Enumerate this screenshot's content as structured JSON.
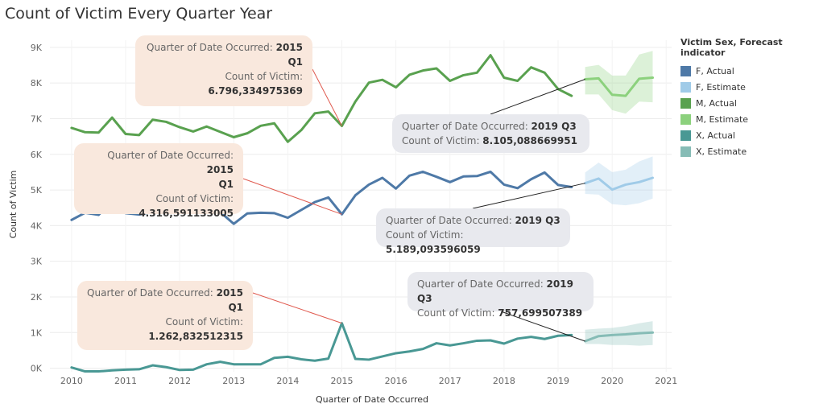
{
  "title": "Count of Victim Every Quarter Year",
  "legend": {
    "title": "Victim Sex, Forecast indicator",
    "items": [
      {
        "label": "F, Actual",
        "color": "#4e79a7"
      },
      {
        "label": "F, Estimate",
        "color": "#a0cbe8"
      },
      {
        "label": "M, Actual",
        "color": "#59a14f"
      },
      {
        "label": "M, Estimate",
        "color": "#8cd17d"
      },
      {
        "label": "X, Actual",
        "color": "#499894"
      },
      {
        "label": "X, Estimate",
        "color": "#86bcb6"
      }
    ]
  },
  "callouts": [
    {
      "key": "Quarter of Date Occurred: ",
      "value": "2015",
      "value2": "Q1",
      "count_key": "Count of Victim:",
      "count_value": "6.796,334975369",
      "style": "peach"
    },
    {
      "key": "Quarter of Date Occurred: ",
      "value": "2019 Q3",
      "count_key": "Count of Victim: ",
      "count_value": "8.105,088669951",
      "style": "gray"
    },
    {
      "key": "Quarter of Date Occurred: ",
      "value": "2015",
      "value2": "Q1",
      "count_key": "Count of Victim:",
      "count_value": "4.316,591133005",
      "style": "peach"
    },
    {
      "key": "Quarter of Date Occurred: ",
      "value": "2019 Q3",
      "count_key": "Count of Victim: ",
      "count_value": "5.189,093596059",
      "style": "gray"
    },
    {
      "key": "Quarter of Date Occurred: ",
      "value": "2015",
      "value2": "Q1",
      "count_key": "Count of Victim:",
      "count_value": "1.262,832512315",
      "style": "peach"
    },
    {
      "key": "Quarter of Date Occurred: ",
      "value": "2019 Q3",
      "count_key": "Count of Victim: ",
      "count_value": "757,699507389",
      "style": "gray"
    }
  ],
  "chart_data": {
    "type": "line",
    "title": "Count of Victim Every Quarter Year",
    "xlabel": "Quarter of Date Occurred",
    "ylabel": "Count of Victim",
    "x_ticks": [
      "2010",
      "2011",
      "2012",
      "2013",
      "2014",
      "2015",
      "2016",
      "2017",
      "2018",
      "2019",
      "2020",
      "2021"
    ],
    "y_ticks": [
      "0K",
      "1K",
      "2K",
      "3K",
      "4K",
      "5K",
      "6K",
      "7K",
      "8K",
      "9K"
    ],
    "xlim": [
      2009.6,
      2021.1
    ],
    "ylim": [
      -100,
      9200
    ],
    "grid": true,
    "legend_position": "right",
    "actual_x": [
      2010.0,
      2010.25,
      2010.5,
      2010.75,
      2011.0,
      2011.25,
      2011.5,
      2011.75,
      2012.0,
      2012.25,
      2012.5,
      2012.75,
      2013.0,
      2013.25,
      2013.5,
      2013.75,
      2014.0,
      2014.25,
      2014.5,
      2014.75,
      2015.0,
      2015.25,
      2015.5,
      2015.75,
      2016.0,
      2016.25,
      2016.5,
      2016.75,
      2017.0,
      2017.25,
      2017.5,
      2017.75,
      2018.0,
      2018.25,
      2018.5,
      2018.75,
      2019.0,
      2019.25
    ],
    "forecast_x": [
      2019.5,
      2019.75,
      2020.0,
      2020.25,
      2020.5,
      2020.75
    ],
    "series": [
      {
        "name": "M, Actual",
        "values": [
          6740,
          6620,
          6610,
          7030,
          6570,
          6540,
          6970,
          6910,
          6760,
          6640,
          6780,
          6630,
          6480,
          6590,
          6800,
          6870,
          6350,
          6680,
          7150,
          7200,
          6796,
          7480,
          8010,
          8090,
          7880,
          8230,
          8350,
          8410,
          8060,
          8220,
          8290,
          8780,
          8150,
          8060,
          8440,
          8290,
          7830,
          7640
        ]
      },
      {
        "name": "F, Actual",
        "values": [
          4160,
          4360,
          4300,
          4690,
          4350,
          4310,
          4390,
          4410,
          4580,
          4430,
          4410,
          4380,
          4050,
          4340,
          4360,
          4350,
          4220,
          4440,
          4660,
          4790,
          4317,
          4850,
          5150,
          5340,
          5040,
          5400,
          5510,
          5370,
          5220,
          5380,
          5390,
          5510,
          5150,
          5050,
          5300,
          5490,
          5140,
          5080
        ]
      },
      {
        "name": "X, Actual",
        "values": [
          20,
          -90,
          -90,
          -60,
          -40,
          -30,
          80,
          30,
          -50,
          -40,
          110,
          180,
          110,
          110,
          110,
          290,
          320,
          250,
          210,
          270,
          1263,
          260,
          240,
          330,
          420,
          470,
          540,
          700,
          640,
          700,
          770,
          780,
          690,
          830,
          880,
          820,
          910,
          930
        ]
      },
      {
        "name": "M, Estimate",
        "values": [
          8105,
          8130,
          7670,
          7640,
          8120,
          8150
        ],
        "lower": [
          7680,
          7680,
          7240,
          7140,
          7480,
          7460
        ],
        "upper": [
          8450,
          8510,
          8210,
          8210,
          8800,
          8900
        ]
      },
      {
        "name": "F, Estimate",
        "values": [
          5189,
          5320,
          5010,
          5150,
          5220,
          5340
        ],
        "lower": [
          4890,
          4870,
          4600,
          4570,
          4630,
          4760
        ],
        "upper": [
          5490,
          5770,
          5500,
          5570,
          5800,
          5940
        ]
      },
      {
        "name": "X, Estimate",
        "values": [
          758,
          900,
          930,
          950,
          980,
          1000
        ],
        "lower": [
          680,
          680,
          650,
          650,
          630,
          650
        ],
        "upper": [
          1080,
          1110,
          1130,
          1180,
          1260,
          1320
        ]
      }
    ]
  }
}
